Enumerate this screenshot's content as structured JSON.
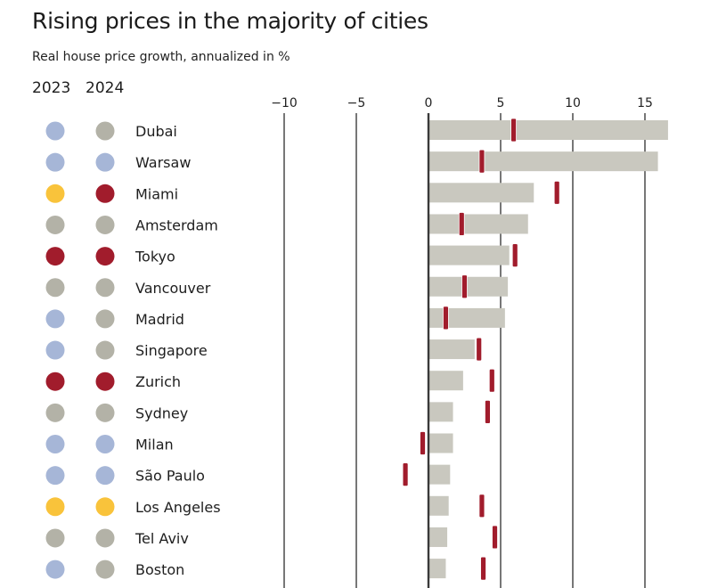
{
  "chart_data": {
    "type": "bar",
    "title": "Rising prices in the majority of cities",
    "subtitle": "Real house price growth, annualized in %",
    "xlabel": "",
    "ylabel": "",
    "xlim": [
      -10,
      16.8
    ],
    "x_ticks": [
      -10,
      -5,
      0,
      5,
      10,
      15
    ],
    "x_tick_labels": [
      "−10",
      "−5",
      "0",
      "5",
      "10",
      "15"
    ],
    "grid": true,
    "legend_headers": [
      "2023",
      "2024"
    ],
    "dot_colors": {
      "blue": "#a6b6d7",
      "gray": "#b3b2a7",
      "yellow": "#f9c33b",
      "red": "#a11c2c"
    },
    "colors": {
      "bar": "#c9c8bf",
      "marker": "#a11c2c",
      "axis": "#3a3a3a",
      "grid": "#555555"
    },
    "categories": [
      "Dubai",
      "Warsaw",
      "Miami",
      "Amsterdam",
      "Tokyo",
      "Vancouver",
      "Madrid",
      "Singapore",
      "Zurich",
      "Sydney",
      "Milan",
      "São Paulo",
      "Los Angeles",
      "Tel Aviv",
      "Boston"
    ],
    "series": [
      {
        "name": "Bar (gray)",
        "values": [
          16.6,
          15.9,
          7.3,
          6.9,
          5.6,
          5.5,
          5.3,
          3.2,
          2.4,
          1.7,
          1.7,
          1.5,
          1.4,
          1.3,
          1.2
        ]
      },
      {
        "name": "Marker (red)",
        "values": [
          5.9,
          3.7,
          8.9,
          2.3,
          6.0,
          2.5,
          1.2,
          3.5,
          4.4,
          4.1,
          -0.4,
          -1.6,
          3.7,
          4.6,
          3.8
        ]
      }
    ],
    "bubble_2023": [
      "blue",
      "blue",
      "yellow",
      "gray",
      "red",
      "gray",
      "blue",
      "blue",
      "red",
      "gray",
      "blue",
      "blue",
      "yellow",
      "gray",
      "blue"
    ],
    "bubble_2024": [
      "gray",
      "blue",
      "red",
      "gray",
      "red",
      "gray",
      "gray",
      "gray",
      "red",
      "gray",
      "blue",
      "blue",
      "yellow",
      "gray",
      "gray"
    ]
  }
}
